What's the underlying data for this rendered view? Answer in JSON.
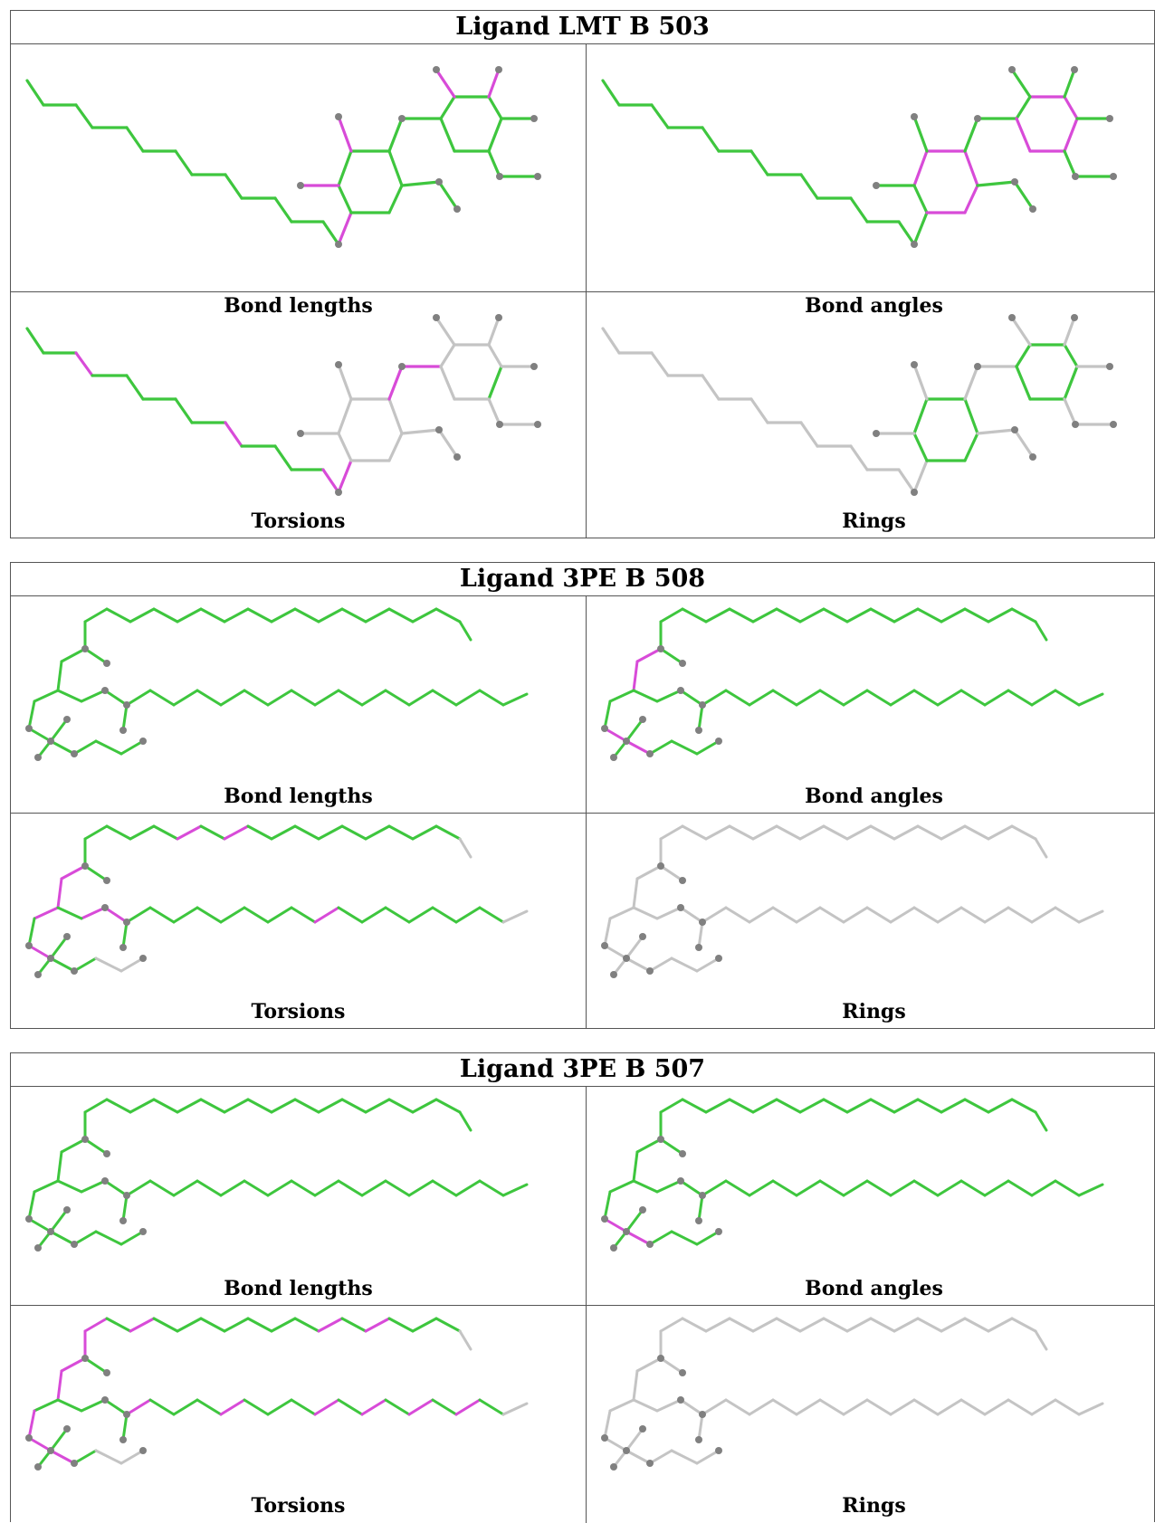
{
  "colors": {
    "ok": "#3ec63e",
    "outlier": "#d84bd8",
    "none": "#c4c4c4",
    "atom": "#808080"
  },
  "blocks": [
    {
      "title": "Ligand LMT B 503",
      "molecule": "LMT",
      "panels": [
        {
          "caption": "Bond lengths",
          "check": "bonds"
        },
        {
          "caption": "Bond angles",
          "check": "angles"
        },
        {
          "caption": "Torsions",
          "check": "torsions"
        },
        {
          "caption": "Rings",
          "check": "rings"
        }
      ]
    },
    {
      "title": "Ligand 3PE B 508",
      "molecule": "3PE",
      "panels": [
        {
          "caption": "Bond lengths",
          "check": "bonds"
        },
        {
          "caption": "Bond angles",
          "check": "angles"
        },
        {
          "caption": "Torsions",
          "check": "torsions"
        },
        {
          "caption": "Rings",
          "check": "rings"
        }
      ]
    },
    {
      "title": "Ligand 3PE B 507",
      "molecule": "3PE",
      "panels": [
        {
          "caption": "Bond lengths",
          "check": "bonds"
        },
        {
          "caption": "Bond angles",
          "check": "angles"
        },
        {
          "caption": "Torsions",
          "check": "torsions"
        },
        {
          "caption": "Rings",
          "check": "rings"
        }
      ]
    }
  ]
}
